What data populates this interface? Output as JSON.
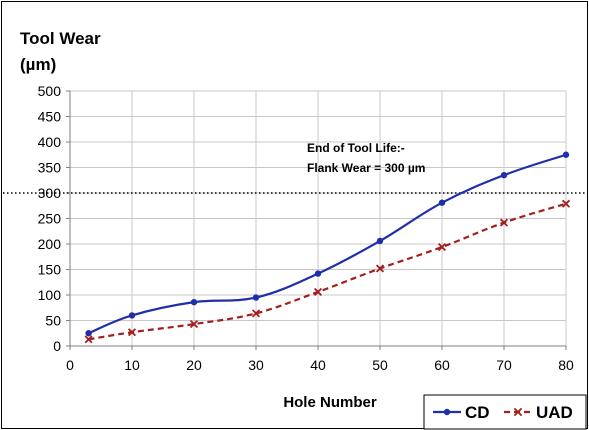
{
  "chart_data": {
    "type": "line",
    "title": "",
    "ylabel_line1": "Tool Wear",
    "ylabel_line2": "(µm)",
    "xlabel": "Hole Number",
    "xlim": [
      0,
      80
    ],
    "ylim": [
      0,
      500
    ],
    "xticks": [
      0,
      10,
      20,
      30,
      40,
      50,
      60,
      70,
      80
    ],
    "yticks": [
      0,
      50,
      100,
      150,
      200,
      250,
      300,
      350,
      400,
      450,
      500
    ],
    "grid": true,
    "legend_position": "bottom-right",
    "reference_line": {
      "y": 300,
      "style": "dotted",
      "annotation_line1": "End of  Tool Life:-",
      "annotation_line2": "Flank Wear = 300 µm"
    },
    "series": [
      {
        "name": "CD",
        "color": "#1f2fa8",
        "marker": "circle",
        "line_style": "solid",
        "x": [
          3,
          10,
          20,
          30,
          40,
          50,
          60,
          70,
          80
        ],
        "y": [
          25,
          60,
          86,
          95,
          142,
          206,
          281,
          335,
          375
        ]
      },
      {
        "name": "UAD",
        "color": "#a51e1e",
        "marker": "x",
        "line_style": "dashed",
        "x": [
          3,
          10,
          20,
          30,
          40,
          50,
          60,
          70,
          80
        ],
        "y": [
          13,
          27,
          43,
          64,
          106,
          152,
          194,
          242,
          279
        ]
      }
    ]
  }
}
